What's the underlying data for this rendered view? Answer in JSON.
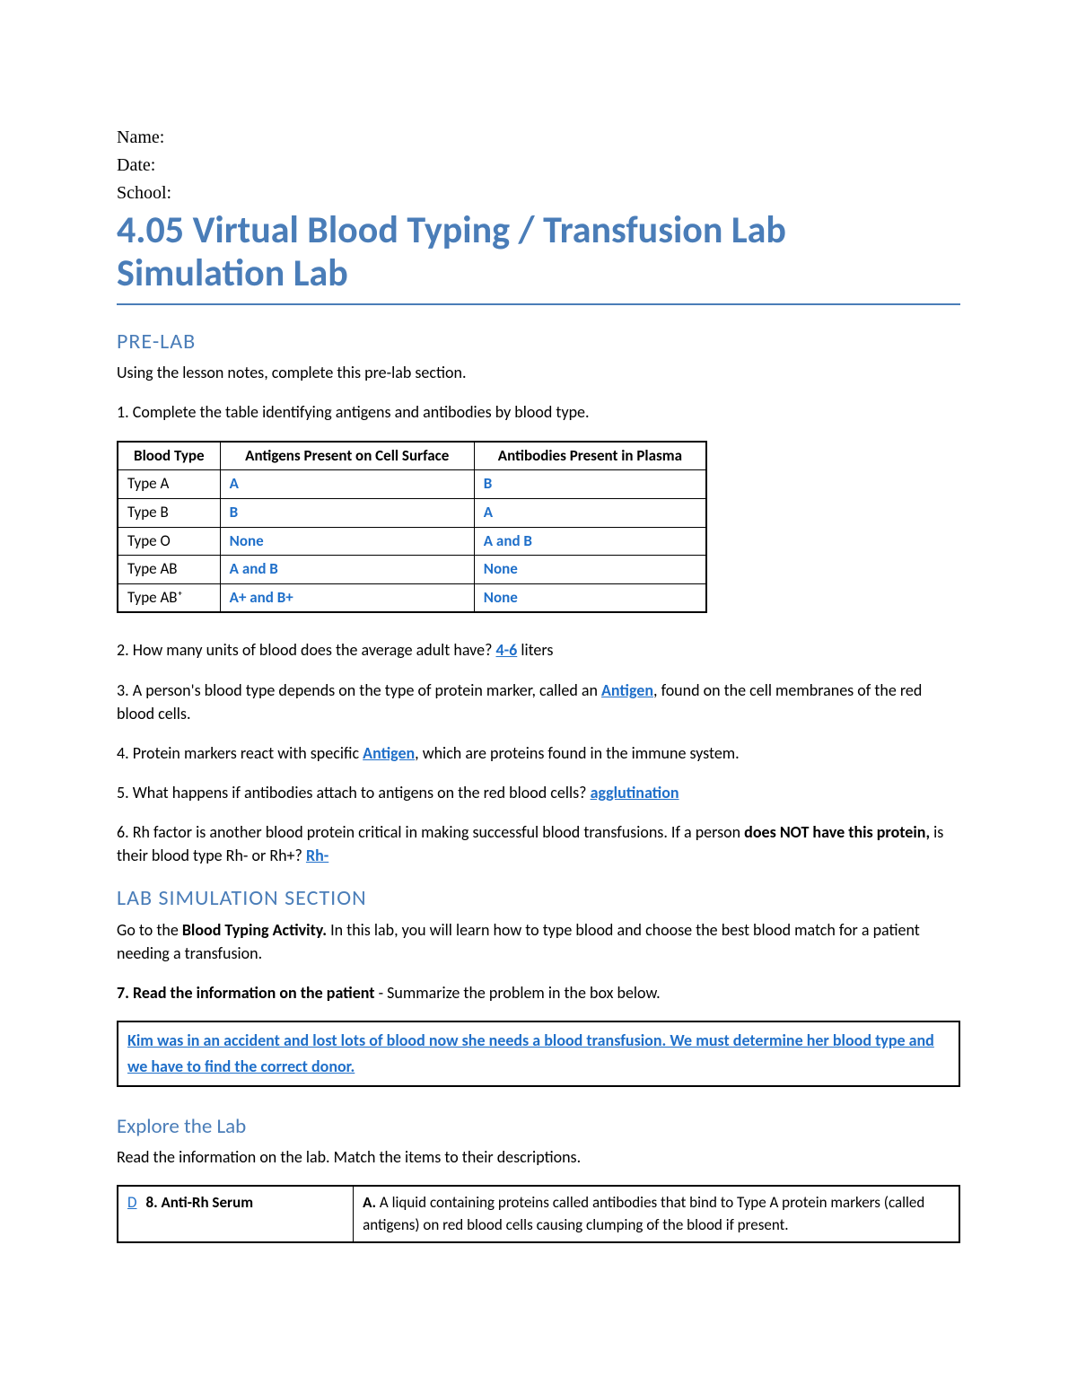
{
  "header": {
    "name_label": "Name:",
    "date_label": "Date:",
    "school_label": "School:"
  },
  "title": "4.05 Virtual Blood Typing / Transfusion Lab Simulation Lab",
  "prelab": {
    "heading": "PRE-LAB",
    "intro": "Using the lesson notes, complete this pre-lab section.",
    "q1": "1. Complete the table identifying antigens and antibodies by blood type.",
    "table": {
      "columns": [
        "Blood Type",
        "Antigens Present on Cell Surface",
        "Antibodies Present in Plasma"
      ],
      "rows": [
        [
          "Type A",
          "A",
          "B"
        ],
        [
          "Type B",
          "B",
          "A"
        ],
        [
          "Type O",
          "None",
          "A and B"
        ],
        [
          "Type AB",
          "A and B",
          "None"
        ],
        [
          "Type AB⁺",
          "A+ and B+",
          "None"
        ]
      ]
    },
    "q2_pre": "2. How many units of blood does the average adult have? ",
    "q2_ans": "4-6",
    "q2_post": "  liters",
    "q3_pre": "3. A person's blood type depends on the type of protein marker, called an ",
    "q3_ans": "Antigen",
    "q3_post": ", found on the cell membranes of the red blood cells.",
    "q4_pre": "4.  Protein markers react with specific ",
    "q4_ans": "Antigen",
    "q4_post": ", which are proteins found in the immune system.",
    "q5_pre": "5.  What happens if antibodies attach to antigens on the red blood cells? ",
    "q5_ans": "agglutination",
    "q6_pre": "6.  Rh factor is another blood protein critical in making successful blood transfusions. If a person ",
    "q6_bold": "does NOT have this protein,",
    "q6_mid": " is their blood type Rh- or Rh+?  ",
    "q6_ans": "Rh-"
  },
  "labsim": {
    "heading": "LAB SIMULATION SECTION",
    "intro_pre": "Go to the ",
    "intro_bold": "Blood Typing Activity.",
    "intro_post": " In this lab, you will learn how to type blood and choose the best blood match for a patient needing a transfusion.",
    "q7_bold": "7. Read the information on the patient",
    "q7_post": " - Summarize the problem in the box below.",
    "summary": "Kim was in an accident and lost lots of blood now she needs a blood transfusion. We must determine her blood type and we have to find the correct donor."
  },
  "explore": {
    "heading": "Explore the Lab",
    "intro": "Read the information on the lab. Match the items to their descriptions.",
    "match": {
      "left_letter": "D",
      "left_label": "8. Anti-Rh Serum",
      "right_bold": "A.",
      "right_text": " A liquid containing proteins called antibodies that bind to Type A protein markers (called antigens) on red blood cells causing clumping of the blood if present."
    }
  },
  "colors": {
    "accent": "#4a7db8",
    "link": "#1f6fc9",
    "text": "#000000",
    "background": "#ffffff"
  }
}
